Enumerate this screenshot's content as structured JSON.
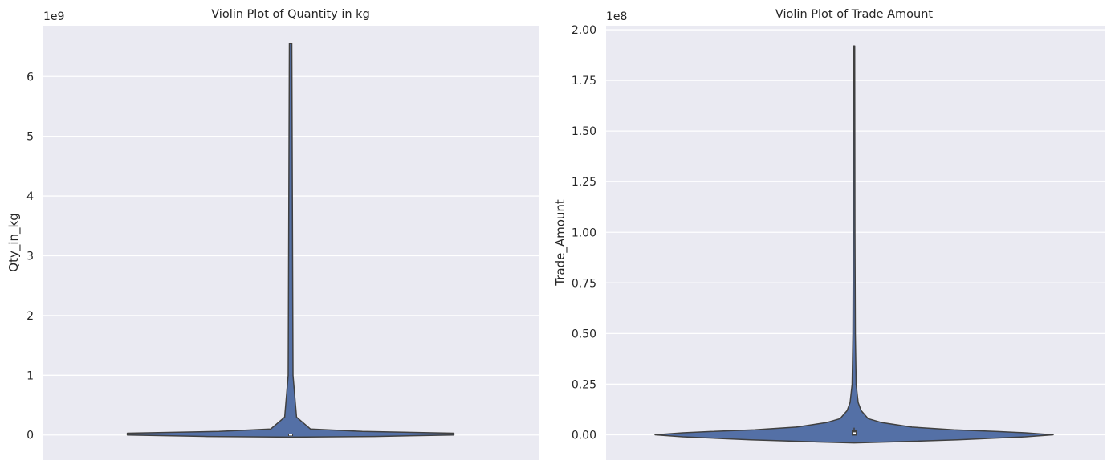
{
  "chart_data": [
    {
      "type": "violin",
      "title": "Violin Plot of Quantity in kg",
      "ylabel": "Qty_in_kg",
      "xlabel": "",
      "offset_label": "1e9",
      "scale": 1000000000,
      "ylim": [
        -0.42,
        6.85
      ],
      "yticks": [
        0,
        1,
        2,
        3,
        4,
        5,
        6
      ],
      "yticklabels": [
        "0",
        "1",
        "2",
        "3",
        "4",
        "5",
        "6"
      ],
      "grid": true,
      "violin": {
        "color": "#5470a6",
        "edge_color": "#404040",
        "profile": [
          [
            -0.035,
            0.0
          ],
          [
            -0.025,
            0.42
          ],
          [
            0.0,
            0.82
          ],
          [
            0.03,
            0.82
          ],
          [
            0.06,
            0.36
          ],
          [
            0.1,
            0.1
          ],
          [
            0.3,
            0.03
          ],
          [
            1.0,
            0.012
          ],
          [
            6.55,
            0.006
          ]
        ],
        "box": {
          "q1": 0.0,
          "q3": 0.01,
          "median": 0.004
        }
      }
    },
    {
      "type": "violin",
      "title": "Violin Plot of Trade Amount",
      "ylabel": "Trade_Amount",
      "xlabel": "",
      "offset_label": "1e8",
      "scale": 100000000,
      "ylim": [
        -0.125,
        2.02
      ],
      "yticks": [
        0.0,
        0.25,
        0.5,
        0.75,
        1.0,
        1.25,
        1.5,
        1.75,
        2.0
      ],
      "yticklabels": [
        "0.00",
        "0.25",
        "0.50",
        "0.75",
        "1.00",
        "1.25",
        "1.50",
        "1.75",
        "2.00"
      ],
      "grid": true,
      "violin": {
        "color": "#5470a6",
        "edge_color": "#404040",
        "profile": [
          [
            -0.04,
            0.0
          ],
          [
            -0.035,
            0.2
          ],
          [
            -0.025,
            0.52
          ],
          [
            -0.01,
            0.86
          ],
          [
            0.0,
            1.0
          ],
          [
            0.01,
            0.86
          ],
          [
            0.016,
            0.72
          ],
          [
            0.025,
            0.5
          ],
          [
            0.038,
            0.29
          ],
          [
            0.06,
            0.14
          ],
          [
            0.08,
            0.07
          ],
          [
            0.12,
            0.035
          ],
          [
            0.16,
            0.02
          ],
          [
            0.25,
            0.01
          ],
          [
            0.5,
            0.006
          ],
          [
            1.0,
            0.004
          ],
          [
            1.92,
            0.003
          ]
        ],
        "box": {
          "q1": 0.0,
          "q3": 0.02,
          "median": 0.008,
          "whisker_low": 0.0,
          "whisker_high": 0.035
        }
      }
    }
  ]
}
